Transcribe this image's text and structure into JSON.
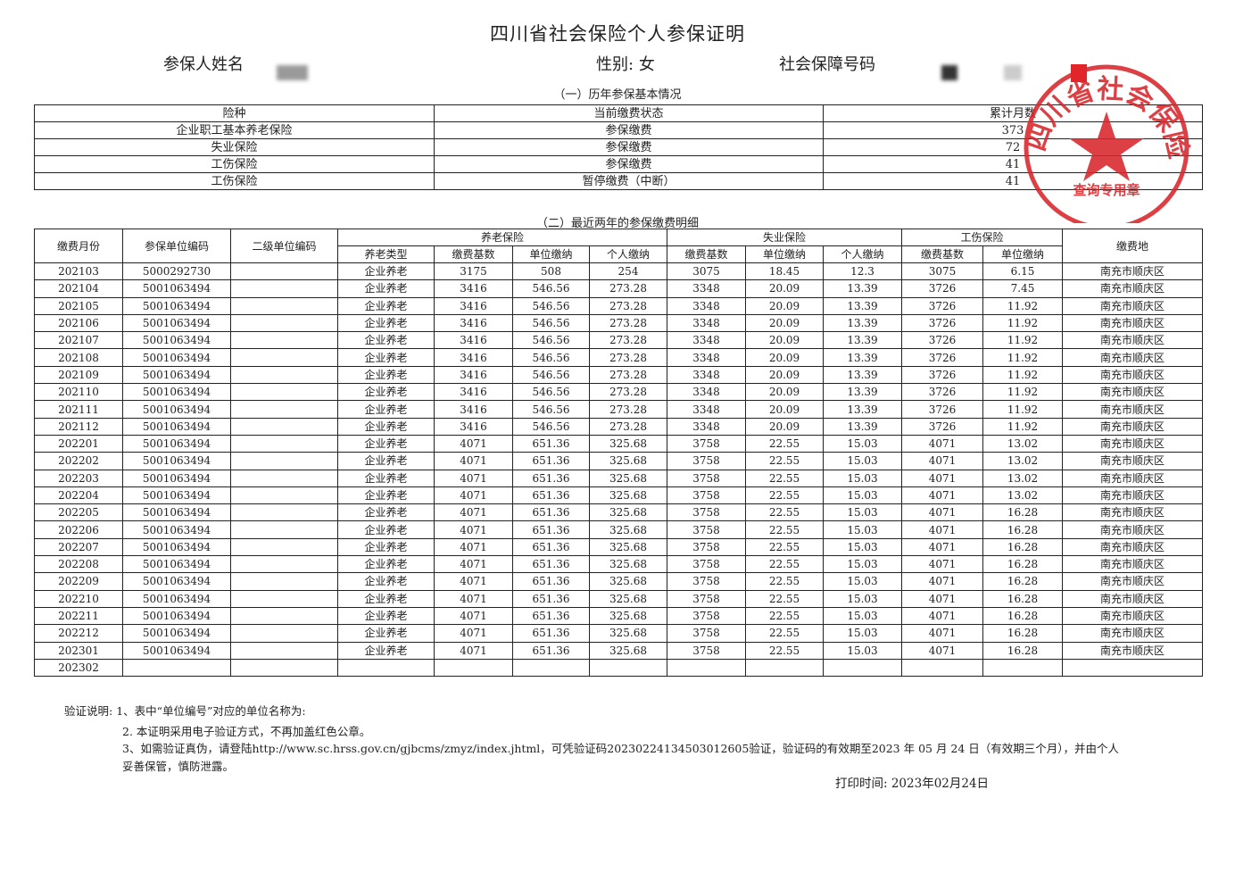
{
  "title": "四川省社会保险个人参保证明",
  "person": {
    "name_label": "参保人姓名",
    "gender_label": "性别:",
    "gender": "女",
    "ssn_label": "社会保障号码"
  },
  "section1": {
    "title": "（一）历年参保基本情况",
    "headers": [
      "险种",
      "当前缴费状态",
      "累计月数"
    ],
    "rows": [
      [
        "企业职工基本养老保险",
        "参保缴费",
        "373"
      ],
      [
        "失业保险",
        "参保缴费",
        "72"
      ],
      [
        "工伤保险",
        "参保缴费",
        "41"
      ],
      [
        "工伤保险",
        "暂停缴费（中断）",
        "41"
      ]
    ]
  },
  "section2": {
    "title": "（二）最近两年的参保缴费明细",
    "group_headers": {
      "month": "缴费月份",
      "unit_code": "参保单位编码",
      "sub_unit_code": "二级单位编码",
      "pension": "养老保险",
      "unemployment": "失业保险",
      "injury": "工伤保险",
      "place": "缴费地"
    },
    "sub_headers": [
      "养老类型",
      "缴费基数",
      "单位缴纳",
      "个人缴纳",
      "缴费基数",
      "单位缴纳",
      "个人缴纳",
      "缴费基数",
      "单位缴纳"
    ],
    "rows": [
      [
        "202103",
        "5000292730",
        "",
        "企业养老",
        "3175",
        "508",
        "254",
        "3075",
        "18.45",
        "12.3",
        "3075",
        "6.15",
        "南充市顺庆区"
      ],
      [
        "202104",
        "5001063494",
        "",
        "企业养老",
        "3416",
        "546.56",
        "273.28",
        "3348",
        "20.09",
        "13.39",
        "3726",
        "7.45",
        "南充市顺庆区"
      ],
      [
        "202105",
        "5001063494",
        "",
        "企业养老",
        "3416",
        "546.56",
        "273.28",
        "3348",
        "20.09",
        "13.39",
        "3726",
        "11.92",
        "南充市顺庆区"
      ],
      [
        "202106",
        "5001063494",
        "",
        "企业养老",
        "3416",
        "546.56",
        "273.28",
        "3348",
        "20.09",
        "13.39",
        "3726",
        "11.92",
        "南充市顺庆区"
      ],
      [
        "202107",
        "5001063494",
        "",
        "企业养老",
        "3416",
        "546.56",
        "273.28",
        "3348",
        "20.09",
        "13.39",
        "3726",
        "11.92",
        "南充市顺庆区"
      ],
      [
        "202108",
        "5001063494",
        "",
        "企业养老",
        "3416",
        "546.56",
        "273.28",
        "3348",
        "20.09",
        "13.39",
        "3726",
        "11.92",
        "南充市顺庆区"
      ],
      [
        "202109",
        "5001063494",
        "",
        "企业养老",
        "3416",
        "546.56",
        "273.28",
        "3348",
        "20.09",
        "13.39",
        "3726",
        "11.92",
        "南充市顺庆区"
      ],
      [
        "202110",
        "5001063494",
        "",
        "企业养老",
        "3416",
        "546.56",
        "273.28",
        "3348",
        "20.09",
        "13.39",
        "3726",
        "11.92",
        "南充市顺庆区"
      ],
      [
        "202111",
        "5001063494",
        "",
        "企业养老",
        "3416",
        "546.56",
        "273.28",
        "3348",
        "20.09",
        "13.39",
        "3726",
        "11.92",
        "南充市顺庆区"
      ],
      [
        "202112",
        "5001063494",
        "",
        "企业养老",
        "3416",
        "546.56",
        "273.28",
        "3348",
        "20.09",
        "13.39",
        "3726",
        "11.92",
        "南充市顺庆区"
      ],
      [
        "202201",
        "5001063494",
        "",
        "企业养老",
        "4071",
        "651.36",
        "325.68",
        "3758",
        "22.55",
        "15.03",
        "4071",
        "13.02",
        "南充市顺庆区"
      ],
      [
        "202202",
        "5001063494",
        "",
        "企业养老",
        "4071",
        "651.36",
        "325.68",
        "3758",
        "22.55",
        "15.03",
        "4071",
        "13.02",
        "南充市顺庆区"
      ],
      [
        "202203",
        "5001063494",
        "",
        "企业养老",
        "4071",
        "651.36",
        "325.68",
        "3758",
        "22.55",
        "15.03",
        "4071",
        "13.02",
        "南充市顺庆区"
      ],
      [
        "202204",
        "5001063494",
        "",
        "企业养老",
        "4071",
        "651.36",
        "325.68",
        "3758",
        "22.55",
        "15.03",
        "4071",
        "13.02",
        "南充市顺庆区"
      ],
      [
        "202205",
        "5001063494",
        "",
        "企业养老",
        "4071",
        "651.36",
        "325.68",
        "3758",
        "22.55",
        "15.03",
        "4071",
        "16.28",
        "南充市顺庆区"
      ],
      [
        "202206",
        "5001063494",
        "",
        "企业养老",
        "4071",
        "651.36",
        "325.68",
        "3758",
        "22.55",
        "15.03",
        "4071",
        "16.28",
        "南充市顺庆区"
      ],
      [
        "202207",
        "5001063494",
        "",
        "企业养老",
        "4071",
        "651.36",
        "325.68",
        "3758",
        "22.55",
        "15.03",
        "4071",
        "16.28",
        "南充市顺庆区"
      ],
      [
        "202208",
        "5001063494",
        "",
        "企业养老",
        "4071",
        "651.36",
        "325.68",
        "3758",
        "22.55",
        "15.03",
        "4071",
        "16.28",
        "南充市顺庆区"
      ],
      [
        "202209",
        "5001063494",
        "",
        "企业养老",
        "4071",
        "651.36",
        "325.68",
        "3758",
        "22.55",
        "15.03",
        "4071",
        "16.28",
        "南充市顺庆区"
      ],
      [
        "202210",
        "5001063494",
        "",
        "企业养老",
        "4071",
        "651.36",
        "325.68",
        "3758",
        "22.55",
        "15.03",
        "4071",
        "16.28",
        "南充市顺庆区"
      ],
      [
        "202211",
        "5001063494",
        "",
        "企业养老",
        "4071",
        "651.36",
        "325.68",
        "3758",
        "22.55",
        "15.03",
        "4071",
        "16.28",
        "南充市顺庆区"
      ],
      [
        "202212",
        "5001063494",
        "",
        "企业养老",
        "4071",
        "651.36",
        "325.68",
        "3758",
        "22.55",
        "15.03",
        "4071",
        "16.28",
        "南充市顺庆区"
      ],
      [
        "202301",
        "5001063494",
        "",
        "企业养老",
        "4071",
        "651.36",
        "325.68",
        "3758",
        "22.55",
        "15.03",
        "4071",
        "16.28",
        "南充市顺庆区"
      ],
      [
        "202302",
        "",
        "",
        "",
        "",
        "",
        "",
        "",
        "",
        "",
        "",
        "",
        ""
      ]
    ]
  },
  "notes": {
    "label": "验证说明:",
    "line1": "1、表中“单位编号”对应的单位名称为:",
    "line2": "2. 本证明采用电子验证方式，不再加盖红色公章。",
    "line3": "3、如需验证真伪，请登陆http://www.sc.hrss.gov.cn/gjbcms/zmyz/index.jhtml，可凭验证码20230224134503012605验证，验证码的有效期至2023 年 05 月 24 日（有效期三个月），并由个人",
    "line4": "妥善保管，慎防泄露。",
    "print_time": "打印时间: 2023年02月24日"
  },
  "stamp": {
    "arc_text": "四川省社会保险",
    "bottom_text": "查询专用章",
    "color": "#d9262b"
  }
}
